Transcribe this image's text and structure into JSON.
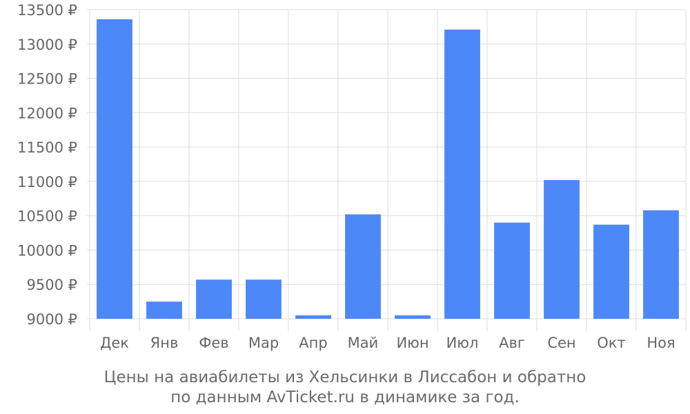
{
  "chart_data": {
    "type": "bar",
    "categories": [
      "Дек",
      "Янв",
      "Фев",
      "Мар",
      "Апр",
      "Май",
      "Июн",
      "Июл",
      "Авг",
      "Сен",
      "Окт",
      "Ноя"
    ],
    "values": [
      13360,
      9250,
      9570,
      9570,
      9050,
      10520,
      9050,
      13210,
      10400,
      11020,
      10370,
      10580
    ],
    "ylim": [
      9000,
      13500
    ],
    "yticks": [
      9000,
      9500,
      10000,
      10500,
      11000,
      11500,
      12000,
      12500,
      13000,
      13500
    ],
    "ytick_suffix": " ₽",
    "bar_color": "#4d88f8",
    "grid": true,
    "caption": {
      "line1": "Цены на авиабилеты из Хельсинки в Лиссабон и обратно",
      "line2": "по данным AvTicket.ru в динамике за год."
    }
  }
}
